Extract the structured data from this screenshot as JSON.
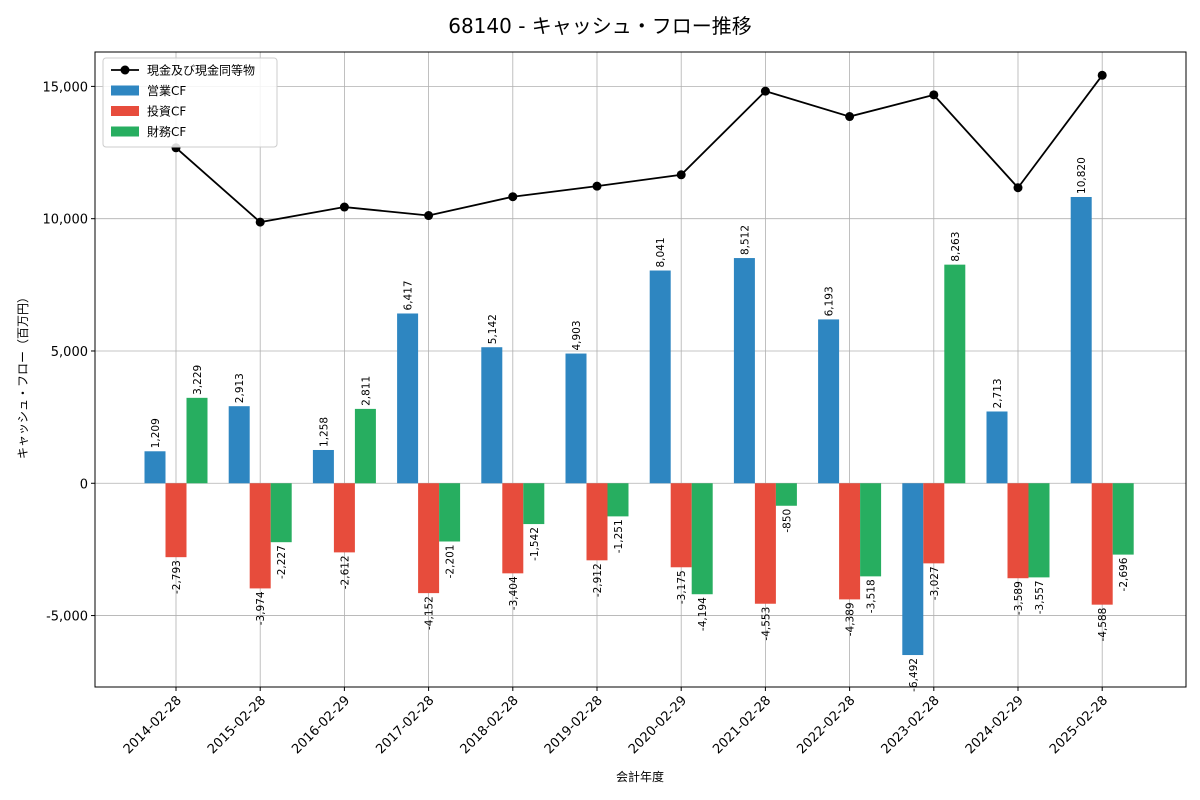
{
  "chart_data": {
    "type": "bar",
    "title": "68140 - キャッシュ・フロー推移",
    "xlabel": "会計年度",
    "ylabel": "キャッシュ・フロー（百万円）",
    "ylim": [
      -7700,
      16300
    ],
    "yticks": [
      -5000,
      0,
      5000,
      10000,
      15000
    ],
    "ytick_labels": [
      "-5,000",
      "0",
      "5,000",
      "10,000",
      "15,000"
    ],
    "grid": true,
    "legend_position": "top-left",
    "categories": [
      "2014-02-28",
      "2015-02-28",
      "2016-02-29",
      "2017-02-28",
      "2018-02-28",
      "2019-02-28",
      "2020-02-29",
      "2021-02-28",
      "2022-02-28",
      "2023-02-28",
      "2024-02-29",
      "2025-02-28"
    ],
    "series": [
      {
        "name": "営業CF",
        "kind": "bar",
        "color": "#2e86c1",
        "values": [
          1209,
          2913,
          1258,
          6417,
          5142,
          4903,
          8041,
          8512,
          6193,
          -6492,
          2713,
          10820
        ],
        "labels": [
          "1,209",
          "2,913",
          "1,258",
          "6,417",
          "5,142",
          "4,903",
          "8,041",
          "8,512",
          "6,193",
          "-6,492",
          "2,713",
          "10,820"
        ]
      },
      {
        "name": "投資CF",
        "kind": "bar",
        "color": "#e74c3c",
        "values": [
          -2793,
          -3974,
          -2612,
          -4152,
          -3404,
          -2912,
          -3175,
          -4553,
          -4389,
          -3027,
          -3589,
          -4588
        ],
        "labels": [
          "-2,793",
          "-3,974",
          "-2,612",
          "-4,152",
          "-3,404",
          "-2,912",
          "-3,175",
          "-4,553",
          "-4,389",
          "-3,027",
          "-3,589",
          "-4,588"
        ]
      },
      {
        "name": "財務CF",
        "kind": "bar",
        "color": "#27ae60",
        "values": [
          3229,
          -2227,
          2811,
          -2201,
          -1542,
          -1251,
          -4194,
          -850,
          -3518,
          8263,
          -3557,
          -2696
        ],
        "labels": [
          "3,229",
          "-2,227",
          "2,811",
          "-2,201",
          "-1,542",
          "-1,251",
          "-4,194",
          "-850",
          "-3,518",
          "8,263",
          "-3,557",
          "-2,696"
        ]
      },
      {
        "name": "現金及び現金同等物",
        "kind": "line",
        "color": "#000000",
        "values": [
          12680,
          9870,
          10440,
          10120,
          10830,
          11230,
          11660,
          14820,
          13860,
          14680,
          11170,
          15420
        ]
      }
    ]
  }
}
